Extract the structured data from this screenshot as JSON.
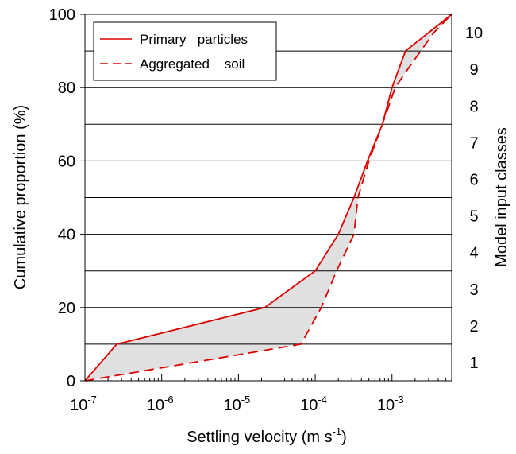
{
  "chart_data": {
    "type": "line",
    "xlabel": "Settling  velocity  (m s",
    "xlabel_sup": "-1",
    "xlabel_close": ")",
    "ylabel": "Cumulative  proportion  (%)",
    "y2label": "Model  input  classes",
    "xscale": "log",
    "xlim": [
      1e-07,
      0.006
    ],
    "ylim": [
      0,
      100
    ],
    "x_ticks": [
      {
        "base": "10",
        "exp": "-7"
      },
      {
        "base": "10",
        "exp": "-6"
      },
      {
        "base": "10",
        "exp": "-5"
      },
      {
        "base": "10",
        "exp": "-4"
      },
      {
        "base": "10",
        "exp": "-3"
      }
    ],
    "y_ticks": [
      "0",
      "20",
      "40",
      "60",
      "80",
      "100"
    ],
    "y2_ticks": [
      "1",
      "2",
      "3",
      "4",
      "5",
      "6",
      "7",
      "8",
      "9",
      "10"
    ],
    "class_boundaries": [
      10,
      20,
      30,
      40,
      50,
      60,
      70,
      80,
      90
    ],
    "grid": "horizontal at class boundaries",
    "legend_position": "top-left",
    "fill_between_series": {
      "color": "#e0e0e0"
    },
    "series": [
      {
        "name": "Primary   particles",
        "style": "solid",
        "color": "#dd0000",
        "points": [
          [
            1e-07,
            0
          ],
          [
            2.6e-07,
            10
          ],
          [
            2.2e-05,
            20
          ],
          [
            0.0001,
            30
          ],
          [
            0.0002,
            40
          ],
          [
            0.00032,
            50
          ],
          [
            0.00048,
            60
          ],
          [
            0.00075,
            70
          ],
          [
            0.001,
            80
          ],
          [
            0.0015,
            90
          ],
          [
            0.006,
            100
          ]
        ]
      },
      {
        "name": "Aggregated    soil",
        "style": "dashed",
        "color": "#dd0000",
        "points": [
          [
            1e-07,
            0
          ],
          [
            6.5e-05,
            10
          ],
          [
            0.00012,
            20
          ],
          [
            0.00019,
            30
          ],
          [
            0.00032,
            40
          ],
          [
            0.00036,
            50
          ],
          [
            0.0005,
            60
          ],
          [
            0.00075,
            70
          ],
          [
            0.0011,
            80
          ],
          [
            0.0016,
            85
          ],
          [
            0.0035,
            95
          ],
          [
            0.006,
            100
          ]
        ]
      }
    ]
  }
}
